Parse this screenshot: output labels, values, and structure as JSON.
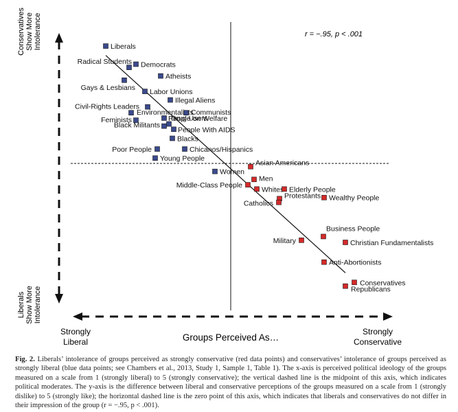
{
  "chart_data": {
    "type": "scatter",
    "stat_label": "r = −.95, p < .001",
    "xlabel": "Groups Perceived As…",
    "x_left_label": [
      "Strongly",
      "Liberal"
    ],
    "x_right_label": [
      "Strongly",
      "Conservative"
    ],
    "y_top_label": [
      "Conservatives",
      "Show More",
      "Intolerance"
    ],
    "y_bottom_label": [
      "Liberals",
      "Show More",
      "Intolerance"
    ],
    "colors": {
      "liberal": "#3b4a8c",
      "conservative": "#d42a2a",
      "stroke": "#111111"
    },
    "series": [
      {
        "name": "Groups perceived as liberal",
        "color": "#3b4a8c",
        "points": [
          {
            "label": "Liberals",
            "x": 1.18,
            "y": 0.0
          },
          {
            "label": "Radical Students",
            "x": 1.52,
            "y": 0.8
          },
          {
            "label": "Democrats",
            "x": 1.62,
            "y": 0.68
          },
          {
            "label": "Atheists",
            "x": 1.98,
            "y": 1.12
          },
          {
            "label": "Gays & Lesbians",
            "x": 1.45,
            "y": 1.28
          },
          {
            "label": "Labor Unions",
            "x": 1.75,
            "y": 1.7
          },
          {
            "label": "Illegal Aliens",
            "x": 2.12,
            "y": 2.02
          },
          {
            "label": "Civil-Rights Leaders",
            "x": 1.79,
            "y": 2.28
          },
          {
            "label": "Environmentalists",
            "x": 1.55,
            "y": 2.5
          },
          {
            "label": "Communists",
            "x": 2.35,
            "y": 2.5
          },
          {
            "label": "Feminists",
            "x": 1.62,
            "y": 2.78
          },
          {
            "label": "People on Welfare",
            "x": 2.03,
            "y": 2.7
          },
          {
            "label": "Drug Users",
            "x": 2.1,
            "y": 2.92
          },
          {
            "label": "Black Militants",
            "x": 2.03,
            "y": 3.0
          },
          {
            "label": "People With AIDS",
            "x": 2.17,
            "y": 3.12
          },
          {
            "label": "Blacks",
            "x": 2.15,
            "y": 3.46
          },
          {
            "label": "Poor People",
            "x": 1.93,
            "y": 3.86
          },
          {
            "label": "Chicanos/Hispanics",
            "x": 2.33,
            "y": 3.86
          },
          {
            "label": "Young People",
            "x": 1.9,
            "y": 4.2
          },
          {
            "label": "Women",
            "x": 2.77,
            "y": 4.7
          }
        ]
      },
      {
        "name": "Groups perceived as conservative",
        "color": "#d42a2a",
        "points": [
          {
            "label": "Asian Americans",
            "x": 3.29,
            "y": 4.52
          },
          {
            "label": "Men",
            "x": 3.34,
            "y": 5.0
          },
          {
            "label": "Middle-Class People",
            "x": 3.25,
            "y": 5.2
          },
          {
            "label": "Whites",
            "x": 3.38,
            "y": 5.36
          },
          {
            "label": "Elderly People",
            "x": 3.78,
            "y": 5.36
          },
          {
            "label": "Protestants",
            "x": 3.71,
            "y": 5.72
          },
          {
            "label": "Wealthy People",
            "x": 4.36,
            "y": 5.68
          },
          {
            "label": "Catholics",
            "x": 3.7,
            "y": 5.86
          },
          {
            "label": "Business People",
            "x": 4.35,
            "y": 7.14
          },
          {
            "label": "Military",
            "x": 4.03,
            "y": 7.28
          },
          {
            "label": "Christian Fundamentalists",
            "x": 4.67,
            "y": 7.36
          },
          {
            "label": "Anti-Abortionists",
            "x": 4.36,
            "y": 8.1
          },
          {
            "label": "Conservatives",
            "x": 4.8,
            "y": 8.86
          },
          {
            "label": "Republicans",
            "x": 4.67,
            "y": 9.0
          }
        ]
      }
    ],
    "trend_line": [
      {
        "x": 1.18,
        "y": 0.35
      },
      {
        "x": 4.67,
        "y": 8.5
      }
    ],
    "midpoint_x": 3.0,
    "zero_y": 4.4,
    "xlim": [
      0.5,
      5.5
    ],
    "ylim": [
      -0.8,
      9.6
    ],
    "ylim_note": ""
  },
  "caption": {
    "label": "Fig. 2.",
    "text": "Liberals’ intolerance of groups perceived as strongly conservative (red data points) and conservatives’ intolerance of groups perceived as strongly liberal (blue data points; see Chambers et al., 2013, Study 1, Sample 1, Table 1). The x-axis is perceived political ideology of the groups measured on a scale from 1 (strongly liberal) to 5 (strongly conservative); the vertical dashed line is the midpoint of this axis, which indicates political moderates. The y-axis is the difference between liberal and conservative perceptions of the groups measured on a scale from 1 (strongly dislike) to 5 (strongly like); the horizontal dashed line is the zero point of this axis, which indicates that liberals and conservatives do not differ in their impression of the group (r = −.95, p < .001)."
  }
}
